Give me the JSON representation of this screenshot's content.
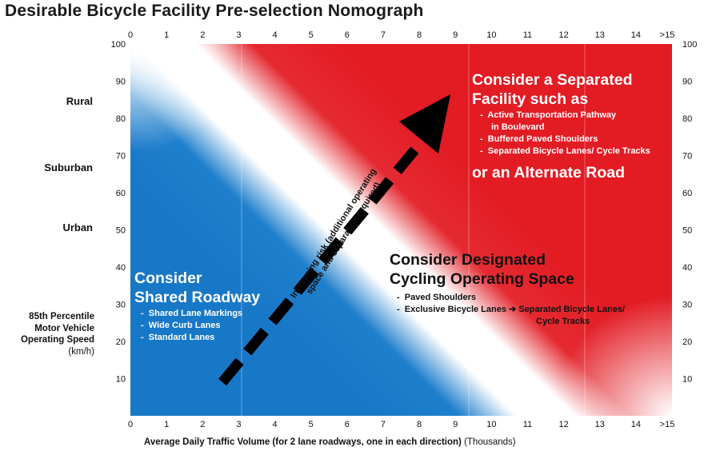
{
  "title": "Desirable Bicycle Facility Pre-selection Nomograph",
  "axes": {
    "x_ticks": [
      "0",
      "1",
      "2",
      "3",
      "4",
      "5",
      "6",
      "7",
      "8",
      "9",
      "10",
      "11",
      "12",
      "13",
      "14",
      ">15"
    ],
    "y_ticks": [
      "10",
      "20",
      "30",
      "40",
      "50",
      "60",
      "70",
      "80",
      "90",
      "100"
    ],
    "x_label": "Average Daily Traffic Volume (for 2 lane roadways, one in each direction)",
    "x_unit": "(Thousands)",
    "y_label_lines": [
      "85th Percentile",
      "Motor Vehicle",
      "Operating Speed"
    ],
    "y_unit": "(km/h)"
  },
  "categories": {
    "rural": "Rural",
    "suburban": "Suburban",
    "urban": "Urban"
  },
  "separated": {
    "title_lines": [
      "Consider a Separated",
      "Facility such as"
    ],
    "items": [
      "Active Transportation Pathway",
      "in Boulevard",
      "Buffered Paved Shoulders",
      "Separated Bicycle Lanes/ Cycle Tracks"
    ],
    "alt": "or an Alternate Road"
  },
  "designated": {
    "title_lines": [
      "Consider Designated",
      "Cycling Operating Space"
    ],
    "items": [
      "Paved Shoulders",
      "Exclusive Bicycle Lanes",
      "Separated Bicycle Lanes/",
      "Cycle Tracks"
    ]
  },
  "shared": {
    "title_lines": [
      "Consider",
      "Shared Roadway"
    ],
    "items": [
      "Shared Lane Markings",
      "Wide Curb Lanes",
      "Standard Lanes"
    ]
  },
  "arrow_lines": [
    "Increasing risk (additional operating",
    "space and separation required)"
  ],
  "colors": {
    "red": "#e31b23",
    "blue": "#1878c8",
    "white": "#ffffff",
    "arrow": "#000000"
  },
  "chart_data": {
    "type": "heatmap",
    "title": "Desirable Bicycle Facility Pre-selection Nomograph",
    "xlabel": "Average Daily Traffic Volume (for 2 lane roadways, one in each direction) (Thousands)",
    "ylabel": "85th Percentile Motor Vehicle Operating Speed (km/h)",
    "xlim": [
      0,
      15
    ],
    "ylim": [
      0,
      100
    ],
    "zones": [
      "Consider Shared Roadway",
      "Consider Designated Cycling Operating Space",
      "Consider a Separated Facility"
    ],
    "speed_context": [
      {
        "label": "Rural",
        "speed": 85
      },
      {
        "label": "Suburban",
        "speed": 67
      },
      {
        "label": "Urban",
        "speed": 48
      }
    ]
  }
}
